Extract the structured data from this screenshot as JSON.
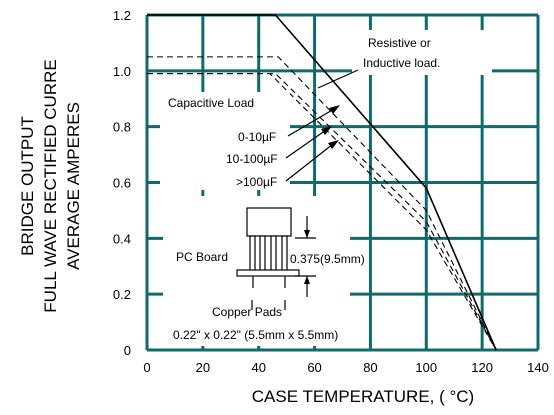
{
  "chart_data": {
    "type": "line",
    "title": "",
    "xlabel": "CASE TEMPERATURE, ( °C)",
    "ylabel_lines": [
      "BRIDGE OUTPUT",
      "FULL WAVE RECTIFIED CURRE",
      "AVERAGE AMPERES"
    ],
    "xlim": [
      0,
      140
    ],
    "ylim": [
      0,
      1.2
    ],
    "x_ticks": [
      "0",
      "20",
      "40",
      "60",
      "80",
      "100",
      "120",
      "140"
    ],
    "y_ticks": [
      "0",
      "0.2",
      "0.4",
      "0.6",
      "0.8",
      "1.0",
      "1.2"
    ],
    "grid": true,
    "series": [
      {
        "name": "Resistive or Inductive load.",
        "style": "solid",
        "x": [
          0,
          46,
          100,
          125
        ],
        "y": [
          1.2,
          1.2,
          0.58,
          0
        ]
      },
      {
        "name": "0-10µF",
        "style": "dashed",
        "x": [
          0,
          47,
          100,
          125
        ],
        "y": [
          1.05,
          1.05,
          0.5,
          0
        ]
      },
      {
        "name": "10-100µF",
        "style": "dashed",
        "x": [
          0,
          46,
          100,
          125
        ],
        "y": [
          0.99,
          0.99,
          0.46,
          0
        ]
      },
      {
        "name": ">100µF",
        "style": "dashed",
        "x": [
          0,
          44,
          100,
          125
        ],
        "y": [
          0.99,
          0.99,
          0.43,
          0
        ]
      }
    ],
    "annotations": {
      "resistive_line1": "Resistive or",
      "resistive_line2": "Inductive load.",
      "capacitive": "Capacitive Load",
      "cap1": "0-10µF",
      "cap2": "10-100µF",
      "cap3": ">100µF",
      "pc_board": "PC Board",
      "dimension": "0.375(9.5mm)",
      "copper_pads": "Copper Pads",
      "pad_size": "0.22\" x 0.22\" (5.5mm x 5.5mm)"
    },
    "colors": {
      "grid": "#0f6b6b",
      "line": "#000000"
    }
  }
}
